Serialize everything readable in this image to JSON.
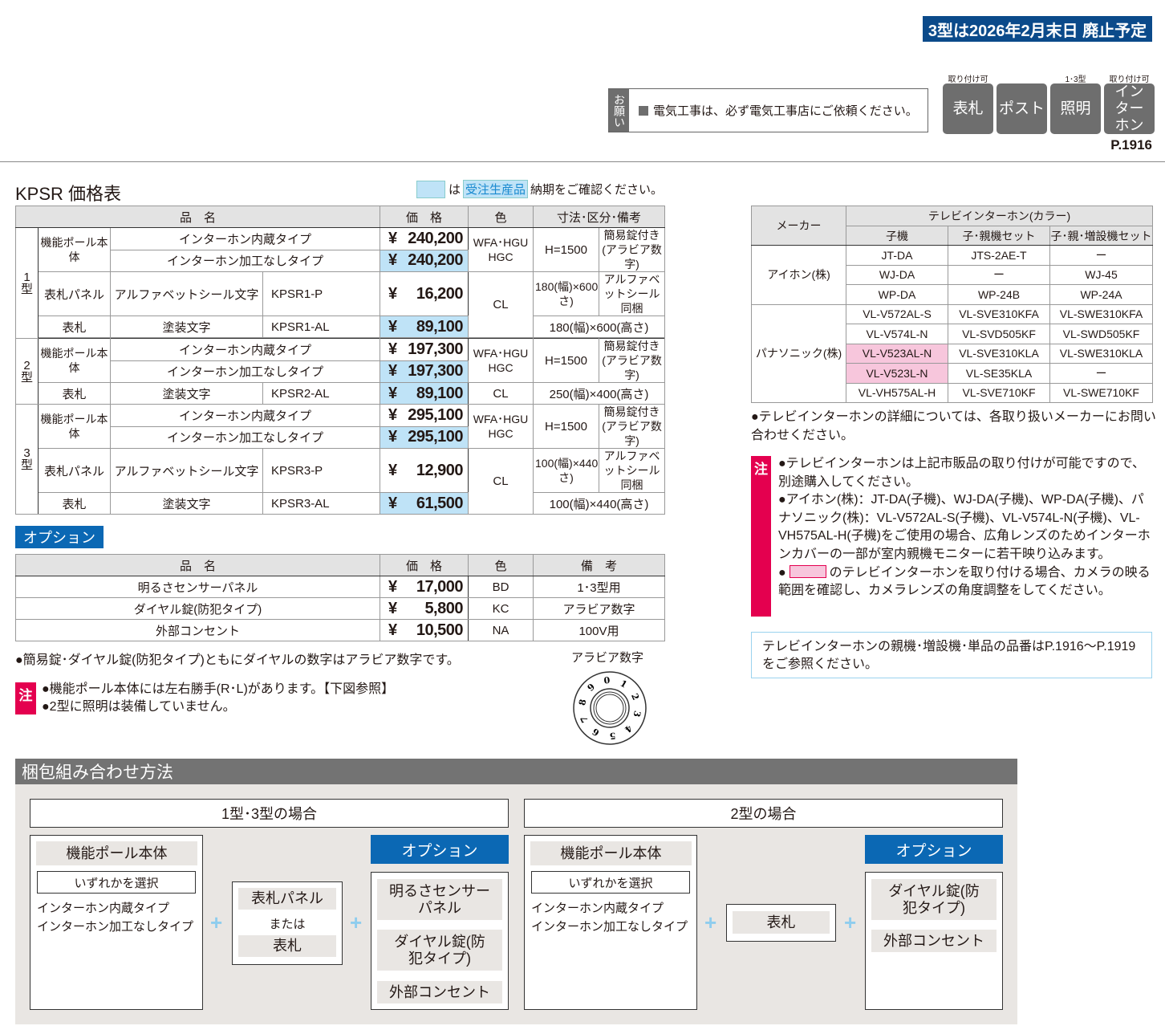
{
  "banner": "3型は2026年2月末日 廃止予定",
  "request": {
    "label": "お願い",
    "text": "電気工事は、必ず電気工事店にご依頼ください。"
  },
  "categories": [
    {
      "label": "表札",
      "note": "取り付け可"
    },
    {
      "label": "ポスト",
      "note": ""
    },
    {
      "label": "照明",
      "note": "1･3型"
    },
    {
      "label": "インターホン",
      "note": "取り付け可"
    }
  ],
  "page_ref": "P.1916",
  "title": "KPSR 価格表",
  "legend": {
    "is": "は",
    "tag": "受注生産品",
    "text": "納期をご確認ください。",
    "highlight_color": "#bfe3f7"
  },
  "price_table": {
    "headers": [
      "品　名",
      "価　格",
      "色",
      "寸法･区分･備考"
    ],
    "currency": "¥",
    "types": [
      {
        "type": "1型",
        "pole_label": "機能ポール本体",
        "pole_rows": [
          {
            "name": "インターホン内蔵タイプ",
            "price": "240,200"
          },
          {
            "name": "インターホン加工なしタイプ",
            "price": "240,200"
          }
        ],
        "pole_color": "WFA･HGU HGC",
        "pole_dim": "H=1500",
        "pole_note": "簡易錠付き(アラビア数字)",
        "panel": {
          "label": "表札パネル",
          "name": "アルファベットシール文字",
          "code": "KPSR1-P",
          "price": "16,200",
          "dim": "180(幅)×600(高さ)",
          "note": "アルファベットシール同梱"
        },
        "plate": {
          "label": "表札",
          "name": "塗装文字",
          "code": "KPSR1-AL",
          "price": "89,100",
          "dim": "180(幅)×600(高さ)"
        },
        "color_cl": "CL"
      },
      {
        "type": "2型",
        "pole_label": "機能ポール本体",
        "pole_rows": [
          {
            "name": "インターホン内蔵タイプ",
            "price": "197,300"
          },
          {
            "name": "インターホン加工なしタイプ",
            "price": "197,300"
          }
        ],
        "pole_color": "WFA･HGU HGC",
        "pole_dim": "H=1500",
        "pole_note": "簡易錠付き(アラビア数字)",
        "plate": {
          "label": "表札",
          "name": "塗装文字",
          "code": "KPSR2-AL",
          "price": "89,100",
          "dim": "250(幅)×400(高さ)"
        },
        "color_cl": "CL"
      },
      {
        "type": "3型",
        "pole_label": "機能ポール本体",
        "pole_rows": [
          {
            "name": "インターホン内蔵タイプ",
            "price": "295,100"
          },
          {
            "name": "インターホン加工なしタイプ",
            "price": "295,100"
          }
        ],
        "pole_color": "WFA･HGU HGC",
        "pole_dim": "H=1500",
        "pole_note": "簡易錠付き(アラビア数字)",
        "panel": {
          "label": "表札パネル",
          "name": "アルファベットシール文字",
          "code": "KPSR3-P",
          "price": "12,900",
          "dim": "100(幅)×440(高さ)",
          "note": "アルファベットシール同梱"
        },
        "plate": {
          "label": "表札",
          "name": "塗装文字",
          "code": "KPSR3-AL",
          "price": "61,500",
          "dim": "100(幅)×440(高さ)"
        },
        "color_cl": "CL"
      }
    ]
  },
  "options": {
    "label": "オプション",
    "headers": [
      "品　名",
      "価　格",
      "色",
      "備　考"
    ],
    "rows": [
      {
        "name": "明るさセンサーパネル",
        "price": "17,000",
        "color": "BD",
        "note": "1･3型用"
      },
      {
        "name": "ダイヤル錠(防犯タイプ)",
        "price": "5,800",
        "color": "KC",
        "note": "アラビア数字"
      },
      {
        "name": "外部コンセント",
        "price": "10,500",
        "color": "NA",
        "note": "100V用"
      }
    ]
  },
  "dial_note": "●簡易錠･ダイヤル錠(防犯タイプ)ともにダイヤルの数字はアラビア数字です。",
  "dial": {
    "label": "アラビア数字",
    "digits": [
      "0",
      "1",
      "2",
      "3",
      "4",
      "5",
      "6",
      "7",
      "8",
      "9"
    ]
  },
  "notes_left": {
    "badge": "注",
    "items": [
      "●機能ポール本体には左右勝手(R･L)があります。【下図参照】",
      "●2型に照明は装備していません。"
    ]
  },
  "maker_table": {
    "header_maker": "メーカー",
    "header_group": "テレビインターホン(カラー)",
    "subheaders": [
      "子機",
      "子･親機セット",
      "子･親･増設機セット"
    ],
    "makers": [
      {
        "name": "アイホン(株)",
        "rows": [
          [
            "JT-DA",
            "JTS-2AE-T",
            "ー"
          ],
          [
            "WJ-DA",
            "ー",
            "WJ-45"
          ],
          [
            "WP-DA",
            "WP-24B",
            "WP-24A"
          ]
        ]
      },
      {
        "name": "パナソニック(株)",
        "rows": [
          [
            "VL-V572AL-S",
            "VL-SVE310KFA",
            "VL-SWE310KFA"
          ],
          [
            "VL-V574L-N",
            "VL-SVD505KF",
            "VL-SWD505KF"
          ],
          [
            "VL-V523AL-N",
            "VL-SVE310KLA",
            "VL-SWE310KLA"
          ],
          [
            "VL-V523L-N",
            "VL-SE35KLA",
            "ー"
          ],
          [
            "VL-VH575AL-H",
            "VL-SVE710KF",
            "VL-SWE710KF"
          ]
        ],
        "highlighted": [
          "VL-V523AL-N",
          "VL-V523L-N"
        ]
      }
    ],
    "highlight_color": "#f7c6dc"
  },
  "right_note": "●テレビインターホンの詳細については、各取り扱いメーカーにお問い合わせください。",
  "right_notes": {
    "badge": "注",
    "items": [
      "●テレビインターホンは上記市販品の取り付けが可能ですので、別途購入してください。",
      "●アイホン(株)：JT-DA(子機)、WJ-DA(子機)、WP-DA(子機)、パナソニック(株)：VL-V572AL-S(子機)、VL-V574L-N(子機)、VL-VH575AL-H(子機)をご使用の場合、広角レンズのためインターホンカバーの一部が室内親機モニターに若干映り込みます。",
      "のテレビインターホンを取り付ける場合、カメラの映る範囲を確認し、カメラレンズの角度調整をしてください。"
    ],
    "bullet": "●"
  },
  "ref_box": "テレビインターホンの親機･増設機･単品の品番はP.1916〜P.1919をご参照ください。",
  "packing": {
    "title": "梱包組み合わせ方法",
    "case13": "1型･3型の場合",
    "case2": "2型の場合",
    "pole": "機能ポール本体",
    "select": "いずれかを選択",
    "pole_opts": [
      "インターホン内蔵タイプ",
      "インターホン加工なしタイプ"
    ],
    "plate13": [
      "表札パネル",
      "または",
      "表札"
    ],
    "plate2": "表札",
    "option_label": "オプション",
    "options13": [
      "明るさセンサーパネル",
      "ダイヤル錠(防犯タイプ)",
      "外部コンセント"
    ],
    "options2": [
      "ダイヤル錠(防犯タイプ)",
      "外部コンセント"
    ],
    "plus": "+"
  }
}
